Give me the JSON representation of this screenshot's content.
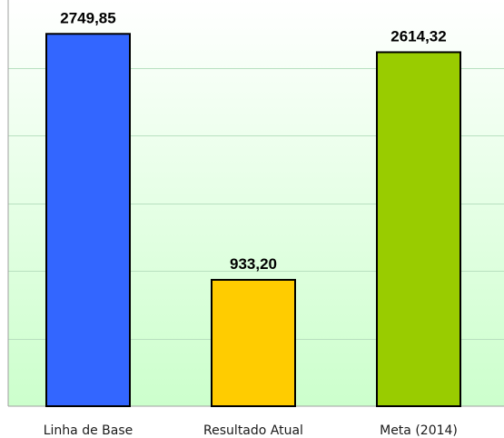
{
  "chart_data": {
    "type": "bar",
    "categories": [
      "Linha de Base",
      "Resultado Atual",
      "Meta (2014)"
    ],
    "values": [
      2749.85,
      933.2,
      2614.32
    ],
    "value_labels": [
      "2749,85",
      "933,20",
      "2614,32"
    ],
    "ylim": [
      0,
      3000
    ],
    "ytick_step": 500,
    "grid": true,
    "legend": "none",
    "bar_colors": [
      "#3366ff",
      "#ffcc00",
      "#99cc00"
    ],
    "plot_background": [
      "#ffffff",
      "#ccffcc"
    ],
    "gridline_color": "#b8e0c0",
    "bar_border_color": "#000000"
  }
}
